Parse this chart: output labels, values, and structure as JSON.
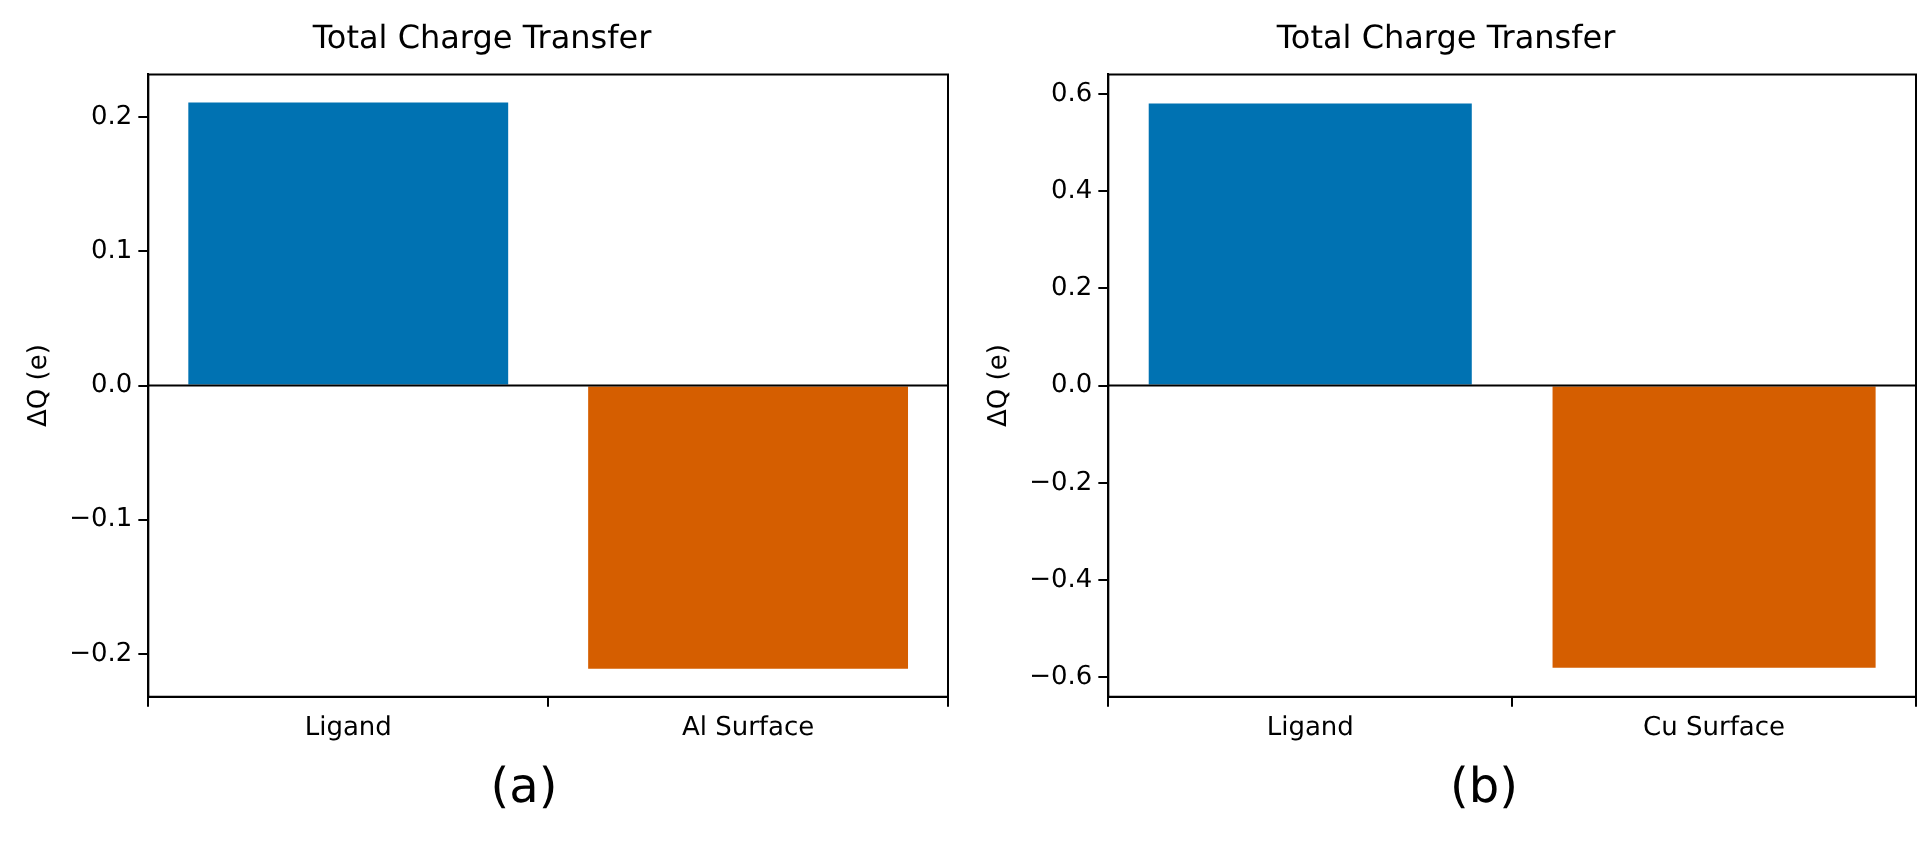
{
  "chart_data": [
    {
      "type": "bar",
      "title": "Total Charge Transfer",
      "ylabel": "ΔQ (e)",
      "categories": [
        "Ligand",
        "Al Surface"
      ],
      "values": [
        0.211,
        -0.211
      ],
      "colors": [
        "#0072b2",
        "#d55e00"
      ],
      "ylim": [
        -0.232,
        0.232
      ],
      "yticks": [
        {
          "value": -0.2,
          "label": "−0.2"
        },
        {
          "value": -0.1,
          "label": "−0.1"
        },
        {
          "value": 0,
          "label": "0.0"
        },
        {
          "value": 0.1,
          "label": "0.1"
        },
        {
          "value": 0.2,
          "label": "0.2"
        }
      ],
      "grid": false,
      "legend": false,
      "ref_lines": [
        {
          "axis": "y",
          "value": 0,
          "color": "#000000"
        }
      ],
      "annotations": [
        "(a)"
      ]
    },
    {
      "type": "bar",
      "title": "Total Charge Transfer",
      "ylabel": "ΔQ (e)",
      "categories": [
        "Ligand",
        "Cu Surface"
      ],
      "values": [
        0.58,
        -0.58
      ],
      "colors": [
        "#0072b2",
        "#d55e00"
      ],
      "ylim": [
        -0.64,
        0.64
      ],
      "yticks": [
        {
          "value": -0.6,
          "label": "−0.6"
        },
        {
          "value": -0.4,
          "label": "−0.4"
        },
        {
          "value": -0.2,
          "label": "−0.2"
        },
        {
          "value": 0,
          "label": "0.0"
        },
        {
          "value": 0.2,
          "label": "0.2"
        },
        {
          "value": 0.4,
          "label": "0.4"
        },
        {
          "value": 0.6,
          "label": "0.6"
        }
      ],
      "grid": false,
      "legend": false,
      "ref_lines": [
        {
          "axis": "y",
          "value": 0,
          "color": "#000000"
        }
      ],
      "annotations": [
        "(b)"
      ]
    }
  ]
}
